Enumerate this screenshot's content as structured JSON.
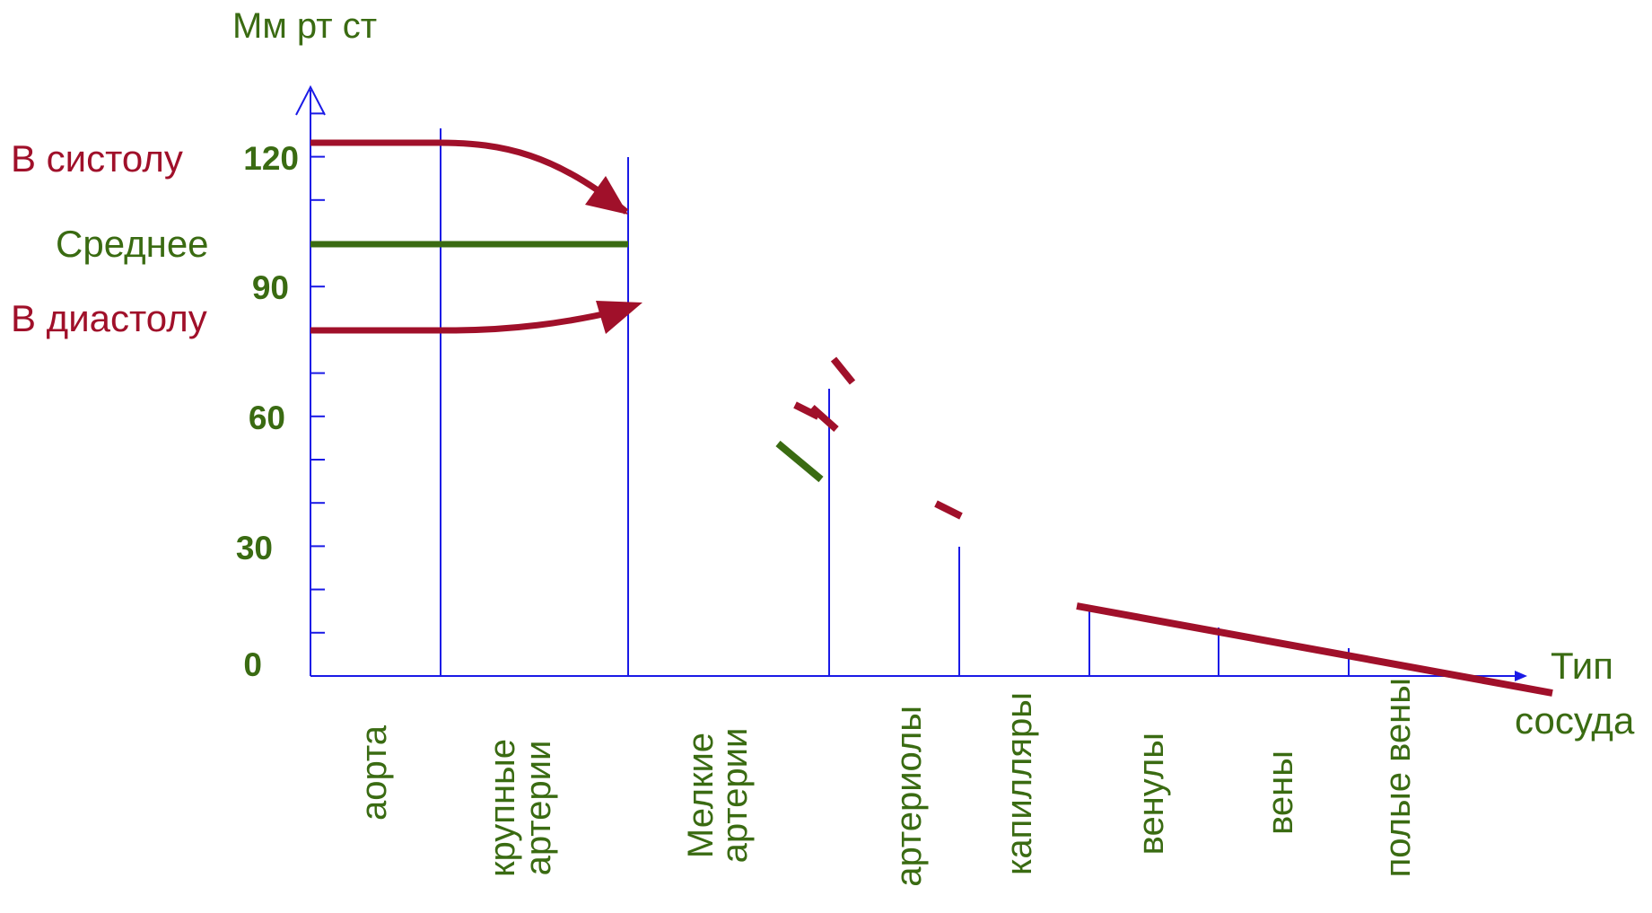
{
  "y_axis": {
    "title": "Мм рт ст",
    "ticks": [
      {
        "value": 0,
        "label": "0"
      },
      {
        "value": 30,
        "label": "30"
      },
      {
        "value": 60,
        "label": "60"
      },
      {
        "value": 90,
        "label": "90"
      },
      {
        "value": 120,
        "label": "120"
      }
    ],
    "minor_tick_step": 10,
    "max": 130
  },
  "x_axis": {
    "title_line1": "Тип",
    "title_line2": "сосуда"
  },
  "legend": {
    "systole": "В систолу",
    "mean": "Среднее",
    "diastole": "В диастолу"
  },
  "vessels": {
    "aorta": "аорта",
    "large_arteries_1": "крупные",
    "large_arteries_2": "артерии",
    "small_arteries_1": "Мелкие",
    "small_arteries_2": "артерии",
    "arterioles": "артериолы",
    "capillaries": "капилляры",
    "venules": "венулы",
    "veins": "вены",
    "vena_cava": "полые вены"
  },
  "pressure": {
    "systolic_aorta": 120,
    "mean_aorta": 100,
    "diastolic_aorta": 80,
    "venous_start": 16,
    "venous_end": -4
  },
  "colors": {
    "axis": "#1a1ae6",
    "systole": "#a0102a",
    "mean": "#3a6b12",
    "text_green": "#3a6b12",
    "text_red": "#a0102a"
  }
}
